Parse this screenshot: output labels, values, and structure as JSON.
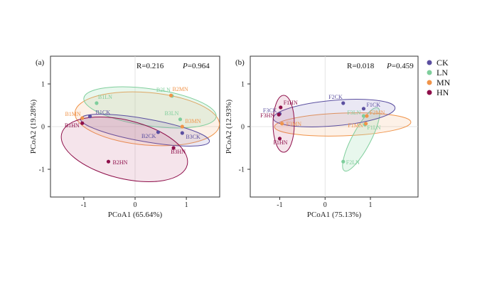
{
  "colors": {
    "CK": "#5b4fa0",
    "LN": "#7fce9c",
    "MN": "#f0944a",
    "HN": "#8e0f4a"
  },
  "legend": [
    "CK",
    "LN",
    "MN",
    "HN"
  ],
  "chart_data": [
    {
      "type": "scatter",
      "panel": "(a)",
      "xlabel": "PCoA1 (65.64%)",
      "ylabel": "PCoA2 (19.28%)",
      "xlim": [
        -1.65,
        1.65
      ],
      "ylim": [
        -1.65,
        1.65
      ],
      "xticks": [
        -1,
        0,
        1
      ],
      "yticks": [
        -1,
        0,
        1
      ],
      "stat_r": "R=0.216",
      "stat_p_label": "P",
      "stat_p_value": "=0.964",
      "points": [
        {
          "label": "B1LN",
          "group": "LN",
          "x": -0.75,
          "y": 0.55
        },
        {
          "label": "B2LN",
          "group": "LN",
          "x": 0.72,
          "y": 0.72
        },
        {
          "label": "B3LN",
          "group": "LN",
          "x": 0.88,
          "y": 0.17
        },
        {
          "label": "B1MN",
          "group": "MN",
          "x": -1.03,
          "y": 0.2
        },
        {
          "label": "B2MN",
          "group": "MN",
          "x": 0.7,
          "y": 0.73
        },
        {
          "label": "B3MN",
          "group": "MN",
          "x": 0.92,
          "y": 0.0
        },
        {
          "label": "B1CK",
          "group": "CK",
          "x": -0.88,
          "y": 0.24
        },
        {
          "label": "B2CK",
          "group": "CK",
          "x": 0.45,
          "y": -0.13
        },
        {
          "label": "B3CK",
          "group": "CK",
          "x": 0.92,
          "y": -0.15
        },
        {
          "label": "B1HN",
          "group": "HN",
          "x": -1.03,
          "y": 0.08
        },
        {
          "label": "B2HN",
          "group": "HN",
          "x": -0.52,
          "y": -0.82
        },
        {
          "label": "B3HN",
          "group": "HN",
          "x": 0.75,
          "y": -0.5
        }
      ]
    },
    {
      "type": "scatter",
      "panel": "(b)",
      "xlabel": "PCoA1 (75.13%)",
      "ylabel": "PCoA2 (12.93%)",
      "xlim": [
        -1.65,
        2.05
      ],
      "ylim": [
        -1.65,
        1.65
      ],
      "xticks": [
        -1,
        0,
        1
      ],
      "yticks": [
        -1,
        0,
        1
      ],
      "stat_r": "R=0.018",
      "stat_p_label": "P",
      "stat_p_value": "=0.459",
      "points": [
        {
          "label": "F1CK",
          "group": "CK",
          "x": 0.85,
          "y": 0.42
        },
        {
          "label": "F2CK",
          "group": "CK",
          "x": 0.4,
          "y": 0.55
        },
        {
          "label": "F3CK",
          "group": "CK",
          "x": -1.0,
          "y": 0.3
        },
        {
          "label": "F1LN",
          "group": "LN",
          "x": 0.88,
          "y": 0.05
        },
        {
          "label": "F2LN",
          "group": "LN",
          "x": 0.4,
          "y": -0.82
        },
        {
          "label": "F3LN",
          "group": "LN",
          "x": 0.85,
          "y": 0.25
        },
        {
          "label": "F1MN",
          "group": "MN",
          "x": 0.9,
          "y": 0.07
        },
        {
          "label": "F2MN",
          "group": "MN",
          "x": 0.92,
          "y": 0.25
        },
        {
          "label": "F3MN",
          "group": "MN",
          "x": -0.95,
          "y": 0.07
        },
        {
          "label": "F1HN",
          "group": "HN",
          "x": -0.98,
          "y": 0.45
        },
        {
          "label": "F1HN",
          "group": "HN",
          "x": -1.0,
          "y": -0.28
        },
        {
          "label": "F3HN",
          "group": "HN",
          "x": -1.02,
          "y": 0.28
        }
      ]
    }
  ]
}
